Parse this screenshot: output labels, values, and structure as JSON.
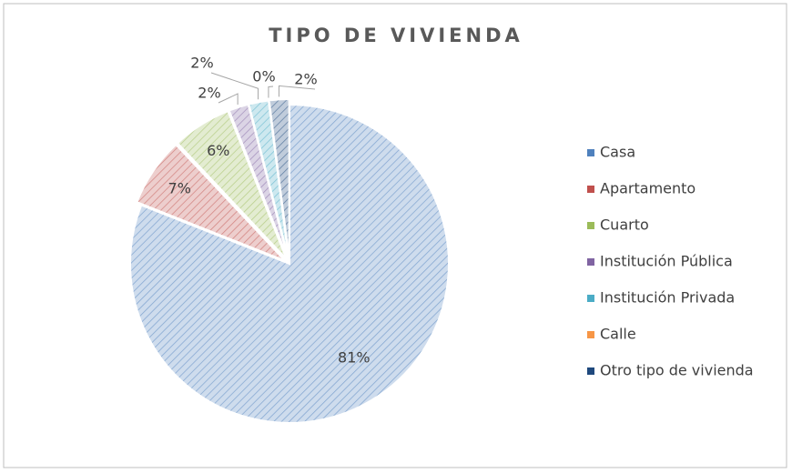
{
  "chart_data": {
    "type": "pie",
    "title": "TIPO DE VIVIENDA",
    "categories": [
      "Casa",
      "Apartamento",
      "Cuarto",
      "Institución Pública",
      "Institución Privada",
      "Calle",
      "Otro tipo de vivienda"
    ],
    "values": [
      81,
      7,
      6,
      2,
      2,
      0,
      2
    ],
    "value_labels": [
      "81%",
      "7%",
      "6%",
      "2%",
      "2%",
      "0%",
      "2%"
    ],
    "colors": [
      "#4f81bd",
      "#c0504d",
      "#9bbb59",
      "#8064a2",
      "#4bacc6",
      "#f79646",
      "#1f497d"
    ],
    "legend": "right"
  }
}
